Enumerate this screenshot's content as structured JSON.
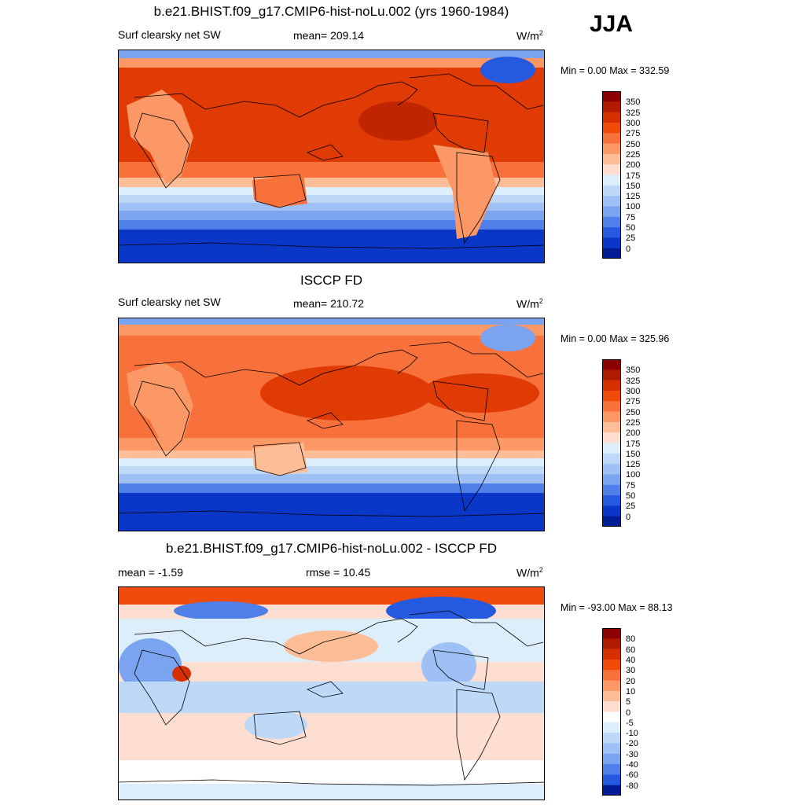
{
  "season": "JJA",
  "panels": [
    {
      "title": "b.e21.BHIST.f09_g17.CMIP6-hist-noLu.002 (yrs 1960-1984)",
      "left_label": "Surf clearsky net SW",
      "center_label": "mean= 209.14",
      "units": "W/m",
      "units_sup": "2",
      "minmax": "Min =   0.00 Max = 332.59",
      "colorbar_ticks": [
        "350",
        "325",
        "300",
        "275",
        "250",
        "225",
        "200",
        "175",
        "150",
        "125",
        "100",
        "75",
        "50",
        "25",
        "0"
      ],
      "colorbar_colors": [
        "#8b0000",
        "#b01a00",
        "#d62f00",
        "#f04b0a",
        "#f8703a",
        "#fb9866",
        "#fdbd96",
        "#feded0",
        "#ddeefb",
        "#bed8f8",
        "#9ec0f5",
        "#7aa4f0",
        "#4f80ea",
        "#2459e0",
        "#0a37c8",
        "#001d96"
      ]
    },
    {
      "title": "ISCCP FD",
      "left_label": "Surf clearsky net SW",
      "center_label": "mean= 210.72",
      "units": "W/m",
      "units_sup": "2",
      "minmax": "Min =   0.00 Max = 325.96",
      "colorbar_ticks": [
        "350",
        "325",
        "300",
        "275",
        "250",
        "225",
        "200",
        "175",
        "150",
        "125",
        "100",
        "75",
        "50",
        "25",
        "0"
      ],
      "colorbar_colors": [
        "#8b0000",
        "#b01a00",
        "#d62f00",
        "#f04b0a",
        "#f8703a",
        "#fb9866",
        "#fdbd96",
        "#feded0",
        "#ddeefb",
        "#bed8f8",
        "#9ec0f5",
        "#7aa4f0",
        "#4f80ea",
        "#2459e0",
        "#0a37c8",
        "#001d96"
      ]
    },
    {
      "title": "b.e21.BHIST.f09_g17.CMIP6-hist-noLu.002 - ISCCP FD",
      "left_label": "mean =  -1.59",
      "center_label": "rmse =  10.45",
      "units": "W/m",
      "units_sup": "2",
      "minmax": "Min = -93.00 Max =  88.13",
      "colorbar_ticks": [
        "80",
        "60",
        "40",
        "30",
        "20",
        "10",
        "5",
        "0",
        "-5",
        "-10",
        "-20",
        "-30",
        "-40",
        "-60",
        "-80"
      ],
      "colorbar_colors": [
        "#8b0000",
        "#b01a00",
        "#d62f00",
        "#f04b0a",
        "#f8703a",
        "#fb9866",
        "#fdbd96",
        "#feded0",
        "#ffffff",
        "#ddeefb",
        "#bed8f8",
        "#9ec0f5",
        "#7aa4f0",
        "#4f80ea",
        "#2459e0",
        "#001d96"
      ]
    }
  ]
}
